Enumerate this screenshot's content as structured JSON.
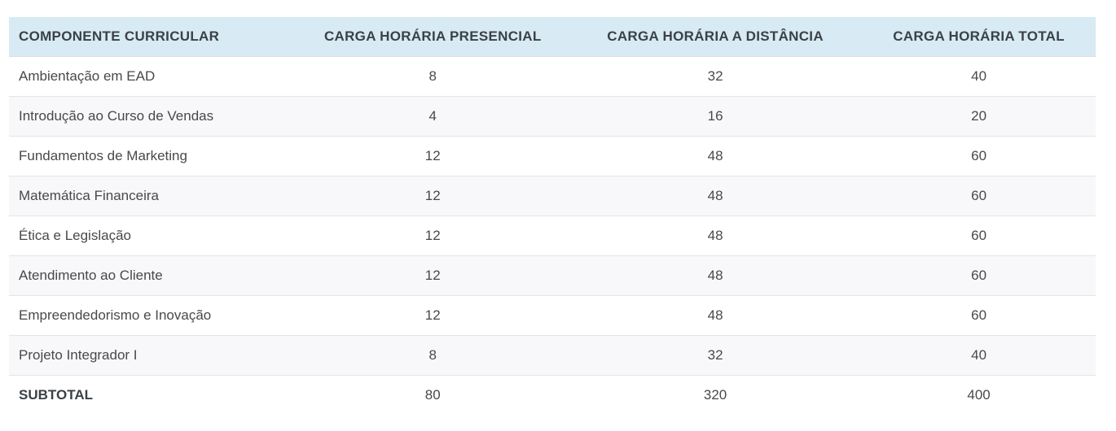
{
  "table": {
    "columns": [
      {
        "key": "componente",
        "label": "COMPONENTE CURRICULAR"
      },
      {
        "key": "presencial",
        "label": "CARGA HORÁRIA PRESENCIAL"
      },
      {
        "key": "distancia",
        "label": "CARGA HORÁRIA A DISTÂNCIA"
      },
      {
        "key": "total",
        "label": "CARGA HORÁRIA TOTAL"
      }
    ],
    "rows": [
      {
        "componente": "Ambientação em EAD",
        "presencial": "8",
        "distancia": "32",
        "total": "40"
      },
      {
        "componente": "Introdução ao Curso de Vendas",
        "presencial": "4",
        "distancia": "16",
        "total": "20"
      },
      {
        "componente": "Fundamentos de Marketing",
        "presencial": "12",
        "distancia": "48",
        "total": "60"
      },
      {
        "componente": "Matemática Financeira",
        "presencial": "12",
        "distancia": "48",
        "total": "60"
      },
      {
        "componente": "Ética e Legislação",
        "presencial": "12",
        "distancia": "48",
        "total": "60"
      },
      {
        "componente": "Atendimento ao Cliente",
        "presencial": "12",
        "distancia": "48",
        "total": "60"
      },
      {
        "componente": "Empreendedorismo e Inovação",
        "presencial": "12",
        "distancia": "48",
        "total": "60"
      },
      {
        "componente": "Projeto Integrador I",
        "presencial": "8",
        "distancia": "32",
        "total": "40"
      }
    ],
    "footer": {
      "componente": "SUBTOTAL",
      "presencial": "80",
      "distancia": "320",
      "total": "400"
    },
    "colors": {
      "header_bg": "#d8eaf3",
      "header_text": "#3a4147",
      "body_text": "#47494c",
      "stripe_bg": "#f8f7fa",
      "separator": "#e4e4e6"
    }
  }
}
